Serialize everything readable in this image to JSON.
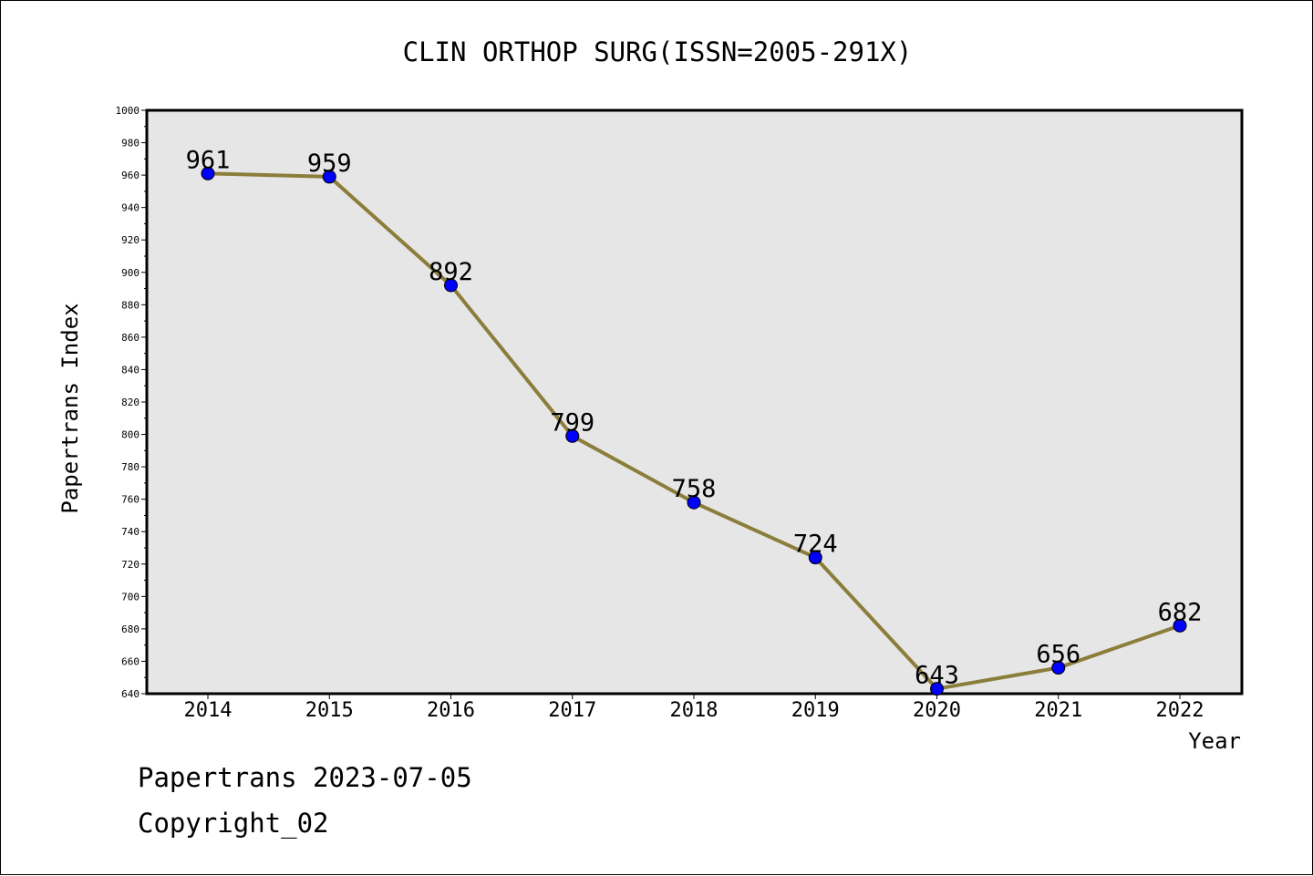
{
  "chart_data": {
    "type": "line",
    "title": "CLIN ORTHOP SURG(ISSN=2005-291X)",
    "xlabel": "Year",
    "ylabel": "Papertrans Index",
    "categories": [
      "2014",
      "2015",
      "2016",
      "2017",
      "2018",
      "2019",
      "2020",
      "2021",
      "2022"
    ],
    "series": [
      {
        "values": [
          961,
          959,
          892,
          799,
          758,
          724,
          643,
          656,
          682
        ]
      }
    ],
    "data_labels": [
      "961",
      "959",
      "892",
      "799",
      "758",
      "724",
      "643",
      "656",
      "682"
    ],
    "ylim": [
      640,
      1000
    ],
    "y_ticks": [
      "640",
      "660",
      "680",
      "700",
      "720",
      "740",
      "760",
      "780",
      "800",
      "820",
      "840",
      "860",
      "880",
      "900",
      "920",
      "940",
      "960",
      "980",
      "1000"
    ],
    "grid": false,
    "legend": "none",
    "colors": {
      "line": "#8B7D3A",
      "marker": "#0000FF",
      "plot_background": "#E6E6E6",
      "axis": "#000000"
    }
  },
  "footer": {
    "line1": "Papertrans 2023-07-05",
    "line2": "Copyright_02"
  }
}
